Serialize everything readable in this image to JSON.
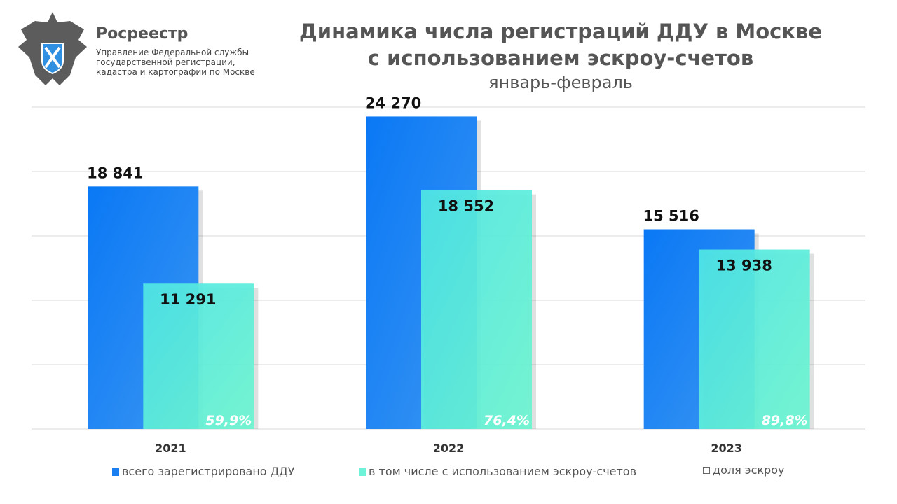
{
  "header": {
    "brand": "Росреестр",
    "subtitle_lines": [
      "Управление Федеральной службы",
      "государственной регистрации,",
      "кадастра и картографии по Москве"
    ]
  },
  "chart_data": {
    "type": "bar",
    "title": "Динамика числа регистраций ДДУ в Москве с использованием эскроу-счетов",
    "title_lines": [
      "Динамика числа регистраций ДДУ в Москве",
      "с использованием эскроу-счетов"
    ],
    "subtitle": "январь-февраль",
    "categories": [
      "2021",
      "2022",
      "2023"
    ],
    "series": [
      {
        "name": "всего зарегистрировано ДДУ",
        "values": [
          18841,
          24270,
          15516
        ],
        "labels": [
          "18 841",
          "24 270",
          "15 516"
        ],
        "color": "#1a7ff0"
      },
      {
        "name": "в том числе с использованием эскроу-счетов",
        "values": [
          11291,
          18552,
          13938
        ],
        "labels": [
          "11 291",
          "18 552",
          "13 938"
        ],
        "color": "#5ef0d6"
      },
      {
        "name": "доля эскроу",
        "values": [
          59.9,
          76.4,
          89.8
        ],
        "labels": [
          "59,9%",
          "76,4%",
          "89,8%"
        ],
        "color": "#ffffff"
      }
    ],
    "ylim": [
      0,
      25000
    ],
    "grid": true,
    "legend": "bottom"
  }
}
